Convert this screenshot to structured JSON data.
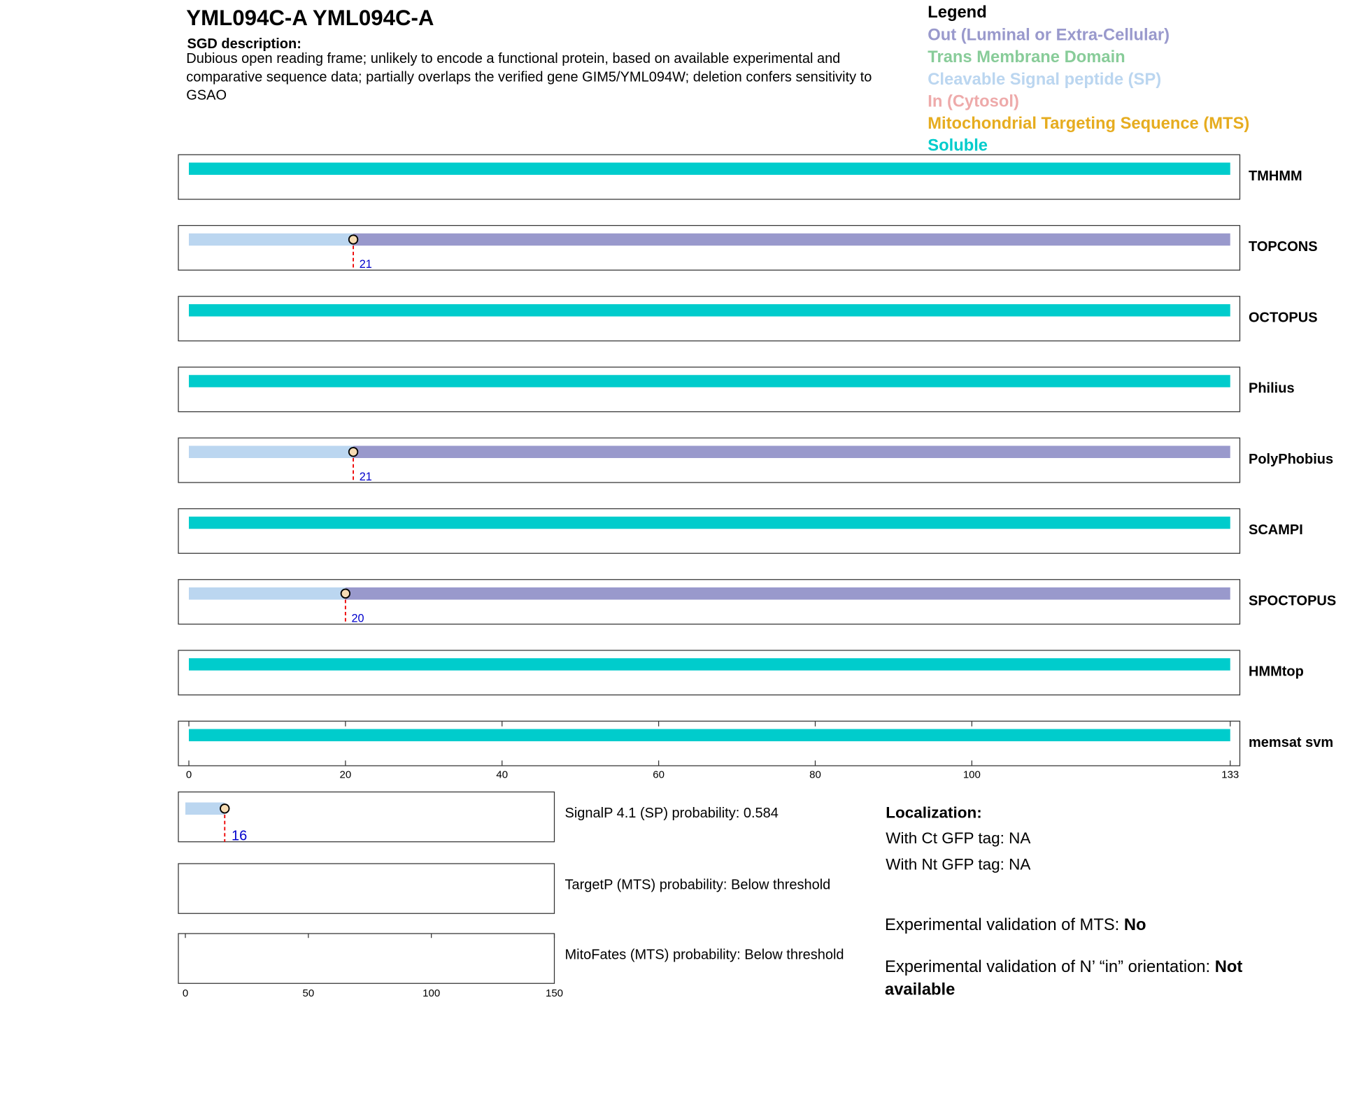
{
  "header": {
    "title": "YML094C-A  YML094C-A",
    "description_label": "SGD description:",
    "description": "Dubious open reading frame; unlikely to encode a functional protein, based on available experimental and comparative sequence data; partially overlaps the verified gene GIM5/YML094W; deletion confers sensitivity to GSAO"
  },
  "legend": {
    "title": "Legend",
    "items": [
      {
        "label": "Out (Luminal or Extra-Cellular)",
        "color": "#9999cc"
      },
      {
        "label": "Trans Membrane Domain",
        "color": "#88cc99"
      },
      {
        "label": "Cleavable Signal peptide (SP)",
        "color": "#bbd6f0"
      },
      {
        "label": "In (Cytosol)",
        "color": "#eeaaaa"
      },
      {
        "label": "Mitochondrial Targeting Sequence (MTS)",
        "color": "#e6ac1f"
      },
      {
        "label": "Soluble",
        "color": "#00cccc"
      }
    ]
  },
  "tracks": {
    "xlim": [
      0,
      133
    ],
    "xticks": [
      0,
      20,
      40,
      60,
      80,
      100,
      133
    ],
    "rows": [
      {
        "name": "TMHMM",
        "segments": [
          {
            "start": 0,
            "end": 133,
            "color": "#00cccc"
          }
        ]
      },
      {
        "name": "TOPCONS",
        "segments": [
          {
            "start": 0,
            "end": 21,
            "color": "#bbd6f0"
          },
          {
            "start": 21,
            "end": 133,
            "color": "#9999cc"
          }
        ],
        "cleavage": 21
      },
      {
        "name": "OCTOPUS",
        "segments": [
          {
            "start": 0,
            "end": 133,
            "color": "#00cccc"
          }
        ]
      },
      {
        "name": "Philius",
        "segments": [
          {
            "start": 0,
            "end": 133,
            "color": "#00cccc"
          }
        ]
      },
      {
        "name": "PolyPhobius",
        "segments": [
          {
            "start": 0,
            "end": 21,
            "color": "#bbd6f0"
          },
          {
            "start": 21,
            "end": 133,
            "color": "#9999cc"
          }
        ],
        "cleavage": 21
      },
      {
        "name": "SCAMPI",
        "segments": [
          {
            "start": 0,
            "end": 133,
            "color": "#00cccc"
          }
        ]
      },
      {
        "name": "SPOCTOPUS",
        "segments": [
          {
            "start": 0,
            "end": 20,
            "color": "#bbd6f0"
          },
          {
            "start": 20,
            "end": 133,
            "color": "#9999cc"
          }
        ],
        "cleavage": 20
      },
      {
        "name": "HMMtop",
        "segments": [
          {
            "start": 0,
            "end": 133,
            "color": "#00cccc"
          }
        ]
      },
      {
        "name": "memsat svm",
        "segments": [
          {
            "start": 0,
            "end": 133,
            "color": "#00cccc"
          }
        ]
      }
    ]
  },
  "predictors": {
    "xlim": [
      0,
      150
    ],
    "xticks": [
      0,
      50,
      100,
      150
    ],
    "rows": [
      {
        "text": "SignalP 4.1 (SP) probability: 0.584",
        "segments": [
          {
            "start": 0,
            "end": 16,
            "color": "#bbd6f0"
          }
        ],
        "cleavage": 16
      },
      {
        "text": "TargetP (MTS) probability: Below threshold",
        "segments": []
      },
      {
        "text": "MitoFates (MTS) probability: Below threshold",
        "segments": []
      }
    ]
  },
  "localization": {
    "title": "Localization:",
    "ct_gfp": "With Ct GFP tag: NA",
    "nt_gfp": "With Nt GFP tag: NA",
    "mts_label": "Experimental validation of MTS: ",
    "mts_value": "No",
    "orientation_label": "Experimental validation of N’ “in” orientation: ",
    "orientation_value": "Not available"
  }
}
